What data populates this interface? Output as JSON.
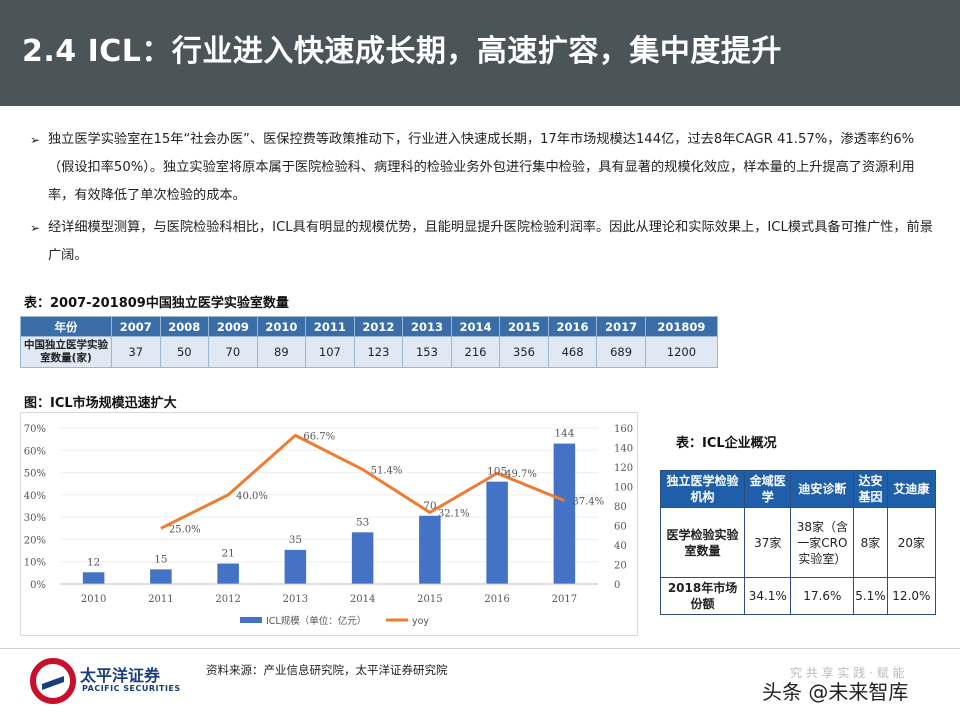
{
  "header": {
    "title": "2.4 ICL：行业进入快速成长期，高速扩容，集中度提升"
  },
  "bullets": [
    "独立医学实验室在15年“社会办医”、医保控费等政策推动下，行业进入快速成长期，17年市场规模达144亿，过去8年CAGR 41.57%，渗透率约6%（假设扣率50%）。独立实验室将原本属于医院检验科、病理科的检验业务外包进行集中检验，具有显著的规模化效应，样本量的上升提高了资源利用率，有效降低了单次检验的成本。",
    "经详细模型测算，与医院检验科相比，ICL具有明显的规模优势，且能明显提升医院检验利润率。因此从理论和实际效果上，ICL模式具备可推广性，前景广阔。"
  ],
  "table1": {
    "caption": "表：2007-201809中国独立医学实验室数量",
    "header_label": "年份",
    "row_label": "中国独立医学实验室数量(家)",
    "years": [
      "2007",
      "2008",
      "2009",
      "2010",
      "2011",
      "2012",
      "2013",
      "2014",
      "2015",
      "2016",
      "2017",
      "201809"
    ],
    "values": [
      "37",
      "50",
      "70",
      "89",
      "107",
      "123",
      "153",
      "216",
      "356",
      "468",
      "689",
      "1200"
    ]
  },
  "chart_caption": "图：ICL市场规模迅速扩大",
  "chart_data": {
    "type": "bar",
    "categories": [
      "2010",
      "2011",
      "2012",
      "2013",
      "2014",
      "2015",
      "2016",
      "2017"
    ],
    "series": [
      {
        "name": "ICL规模（单位：亿元）",
        "type": "bar",
        "axis": "right",
        "values": [
          12,
          15,
          21,
          35,
          53,
          70,
          105,
          144
        ],
        "color": "#4472c4"
      },
      {
        "name": "yoy",
        "type": "line",
        "axis": "left",
        "values": [
          null,
          25.0,
          40.0,
          66.7,
          51.4,
          32.1,
          49.7,
          37.4
        ],
        "labels": [
          "",
          "25.0%",
          "40.0%",
          "66.7%",
          "51.4%",
          "32.1%",
          "49.7%",
          "37.4%"
        ],
        "color": "#ed7d31"
      }
    ],
    "bar_labels": [
      "12",
      "15",
      "21",
      "35",
      "53",
      "70",
      "105",
      "144"
    ],
    "left_axis": {
      "min": 0,
      "max": 70,
      "ticks": [
        "0%",
        "10%",
        "20%",
        "30%",
        "40%",
        "50%",
        "60%",
        "70%"
      ]
    },
    "right_axis": {
      "min": 0,
      "max": 160,
      "ticks": [
        "0",
        "20",
        "40",
        "60",
        "80",
        "100",
        "120",
        "140",
        "160"
      ]
    },
    "grid": true,
    "legend_position": "bottom"
  },
  "table2": {
    "caption": "表：ICL企业概况",
    "header": [
      "独立医学检验机构",
      "金域医学",
      "迪安诊断",
      "达安基因",
      "艾迪康"
    ],
    "rows": [
      {
        "label": "医学检验实验室数量",
        "cells": [
          "37家",
          "38家（含一家CRO实验室）",
          "8家",
          "20家"
        ]
      },
      {
        "label": "2018年市场份额",
        "cells": [
          "34.1%",
          "17.6%",
          "5.1%",
          "12.0%"
        ]
      }
    ]
  },
  "footer": {
    "logo_cn": "太平洋证券",
    "logo_en": "PACIFIC SECURITIES",
    "source": "资料来源：产业信息研究院，太平洋证券研究院",
    "faint_text": "究 共 享 实 践 ·  赋 能",
    "watermark": "头条 @未来智库"
  },
  "colors": {
    "header_bg": "#4a5459",
    "table_header": "#3b6ea8",
    "bar": "#4472c4",
    "line": "#ed7d31"
  }
}
